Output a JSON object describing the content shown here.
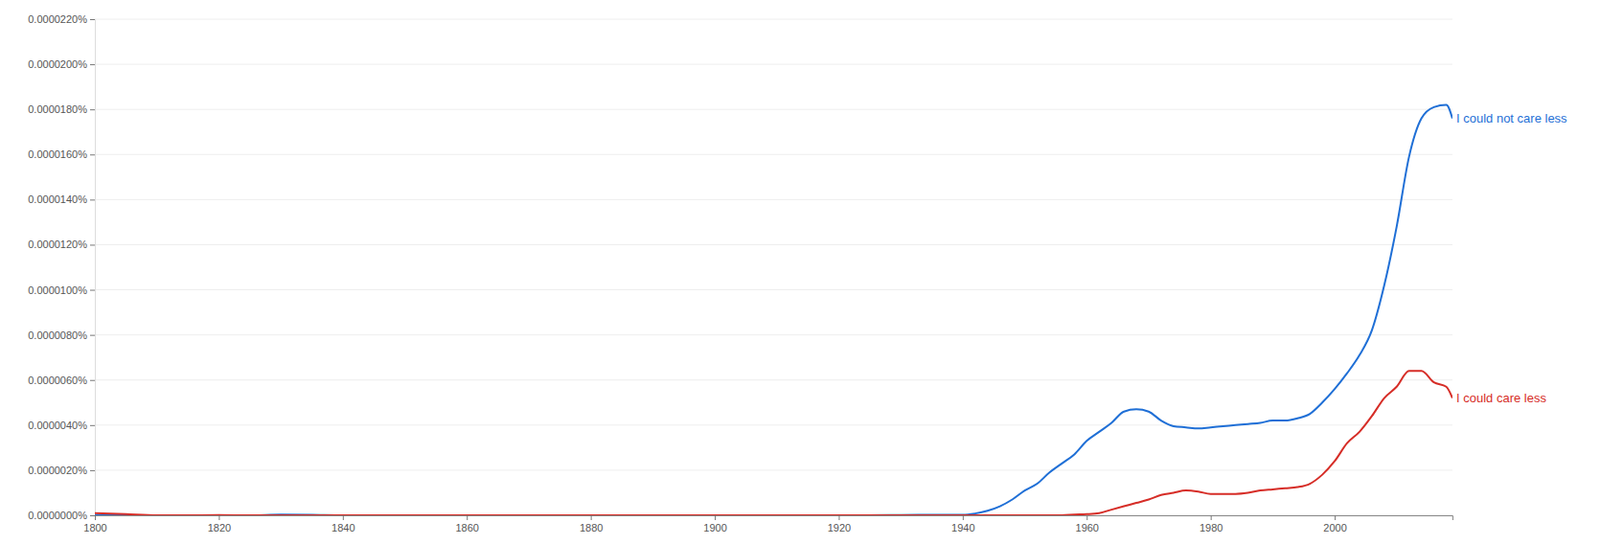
{
  "chart_data": {
    "type": "line",
    "x": [
      1800,
      1805,
      1810,
      1815,
      1820,
      1825,
      1830,
      1835,
      1840,
      1845,
      1850,
      1855,
      1860,
      1865,
      1870,
      1875,
      1880,
      1885,
      1890,
      1895,
      1900,
      1905,
      1910,
      1915,
      1920,
      1925,
      1930,
      1935,
      1940,
      1942,
      1944,
      1946,
      1948,
      1950,
      1952,
      1954,
      1956,
      1958,
      1960,
      1962,
      1964,
      1966,
      1968,
      1970,
      1972,
      1974,
      1976,
      1978,
      1980,
      1982,
      1984,
      1986,
      1988,
      1990,
      1992,
      1994,
      1996,
      1998,
      2000,
      2002,
      2004,
      2006,
      2008,
      2010,
      2012,
      2014,
      2016,
      2018,
      2019
    ],
    "series": [
      {
        "name": "I could not care less",
        "color": "#1f6fd6",
        "values": [
          1e-08,
          0,
          0,
          0,
          0,
          0,
          3e-08,
          2e-08,
          0,
          0,
          0,
          0,
          0,
          0,
          0,
          0,
          0,
          0,
          0,
          0,
          0,
          0,
          0,
          0,
          0,
          0,
          1e-08,
          2e-08,
          2e-08,
          8e-08,
          2e-07,
          4e-07,
          7e-07,
          1.1e-06,
          1.4e-06,
          1.9e-06,
          2.3e-06,
          2.7e-06,
          3.3e-06,
          3.7e-06,
          4.1e-06,
          4.6e-06,
          4.7e-06,
          4.6e-06,
          4.2e-06,
          3.95e-06,
          3.9e-06,
          3.85e-06,
          3.9e-06,
          3.95e-06,
          4e-06,
          4.05e-06,
          4.1e-06,
          4.2e-06,
          4.2e-06,
          4.3e-06,
          4.5e-06,
          5e-06,
          5.6e-06,
          6.3e-06,
          7.1e-06,
          8.2e-06,
          1.02e-05,
          1.28e-05,
          1.59e-05,
          1.76e-05,
          1.81e-05,
          1.82e-05,
          1.76e-05
        ]
      },
      {
        "name": "I could care less",
        "color": "#d62d27",
        "values": [
          1e-07,
          5e-08,
          0,
          0,
          1e-08,
          0,
          0,
          0,
          0,
          0,
          0,
          0,
          0,
          0,
          0,
          0,
          0,
          0,
          0,
          0,
          0,
          0,
          0,
          0,
          0,
          0,
          0,
          0,
          0,
          0,
          0,
          0,
          0,
          0,
          0,
          0,
          0,
          3e-08,
          5e-08,
          1e-07,
          2.5e-07,
          4e-07,
          5.5e-07,
          7e-07,
          9e-07,
          1e-06,
          1.1e-06,
          1.05e-06,
          9.5e-07,
          9.5e-07,
          9.5e-07,
          1e-06,
          1.1e-06,
          1.15e-06,
          1.2e-06,
          1.25e-06,
          1.4e-06,
          1.8e-06,
          2.4e-06,
          3.2e-06,
          3.7e-06,
          4.4e-06,
          5.2e-06,
          5.7e-06,
          6.4e-06,
          6.4e-06,
          5.9e-06,
          5.7e-06,
          5.2e-06
        ]
      }
    ],
    "xlim": [
      1800,
      2019
    ],
    "xticks": [
      1800,
      1820,
      1840,
      1860,
      1880,
      1900,
      1920,
      1940,
      1960,
      1980,
      2000
    ],
    "ylim": [
      0,
      2.2e-05
    ],
    "yticks": [
      {
        "value": 0,
        "label": "0.0000000%"
      },
      {
        "value": 2e-06,
        "label": "0.0000020%"
      },
      {
        "value": 4e-06,
        "label": "0.0000040%"
      },
      {
        "value": 6e-06,
        "label": "0.0000060%"
      },
      {
        "value": 8e-06,
        "label": "0.0000080%"
      },
      {
        "value": 1e-05,
        "label": "0.0000100%"
      },
      {
        "value": 1.2e-05,
        "label": "0.0000120%"
      },
      {
        "value": 1.4e-05,
        "label": "0.0000140%"
      },
      {
        "value": 1.6e-05,
        "label": "0.0000160%"
      },
      {
        "value": 1.8e-05,
        "label": "0.0000180%"
      },
      {
        "value": 2e-05,
        "label": "0.0000200%"
      },
      {
        "value": 2.2e-05,
        "label": "0.0000220%"
      }
    ],
    "grid": true
  }
}
